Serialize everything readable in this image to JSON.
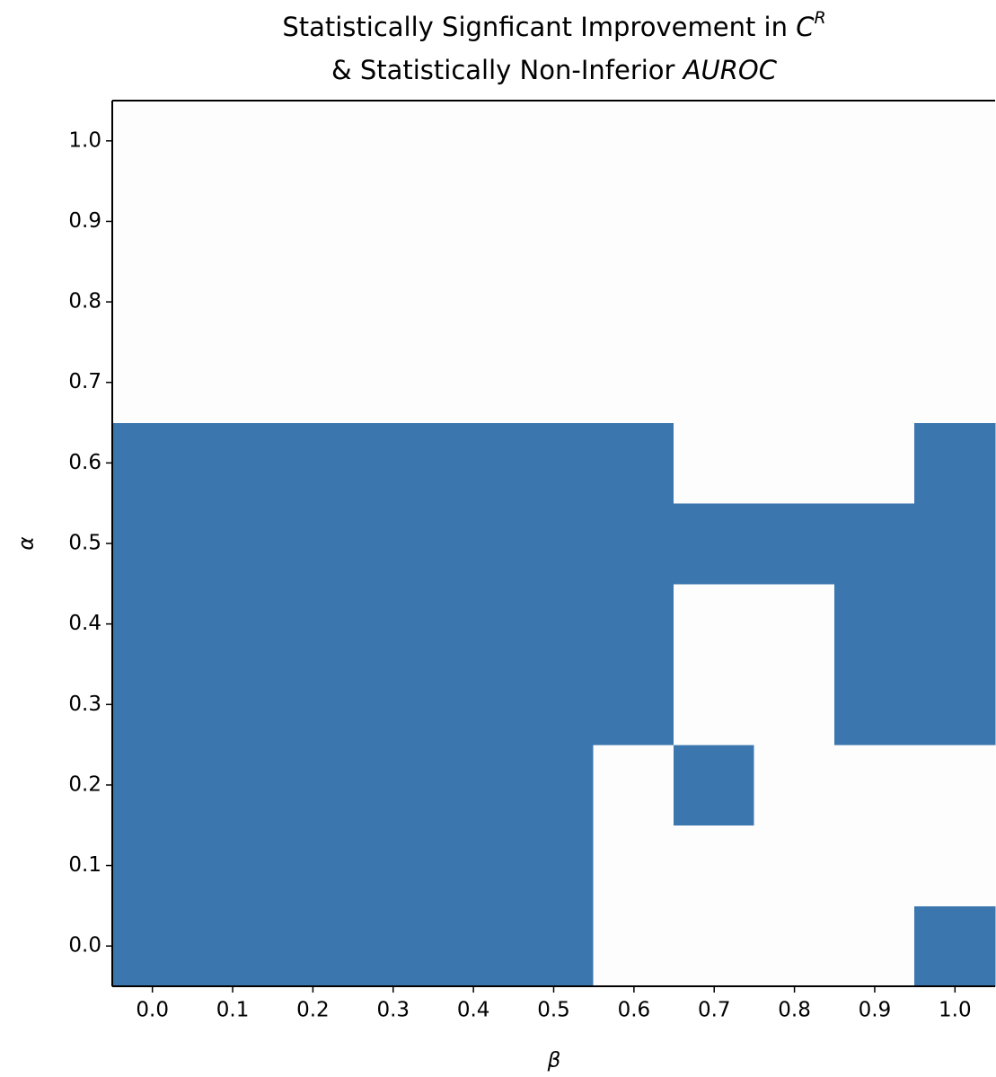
{
  "chart_data": {
    "type": "heatmap",
    "title": [
      "Statistically Signficant Improvement in ",
      "C",
      "R",
      "& Statistically Non-Inferior ",
      "AUROC"
    ],
    "x_label": "β",
    "y_label": "α",
    "x": [
      0,
      0.1,
      0.2,
      0.3,
      0.4,
      0.5,
      0.6,
      0.7,
      0.8,
      0.9,
      1
    ],
    "y": [
      0,
      0.1,
      0.2,
      0.3,
      0.4,
      0.5,
      0.6,
      0.7,
      0.8,
      0.9,
      1
    ],
    "z": [
      [
        1,
        1,
        1,
        1,
        1,
        1,
        0,
        0,
        0,
        0,
        1
      ],
      [
        1,
        1,
        1,
        1,
        1,
        1,
        0,
        0,
        0,
        0,
        0
      ],
      [
        1,
        1,
        1,
        1,
        1,
        1,
        0,
        1,
        0,
        0,
        0
      ],
      [
        1,
        1,
        1,
        1,
        1,
        1,
        1,
        0,
        0,
        1,
        1
      ],
      [
        1,
        1,
        1,
        1,
        1,
        1,
        1,
        0,
        0,
        1,
        1
      ],
      [
        1,
        1,
        1,
        1,
        1,
        1,
        1,
        1,
        1,
        1,
        1
      ],
      [
        1,
        1,
        1,
        1,
        1,
        1,
        1,
        0,
        0,
        0,
        1
      ],
      [
        0,
        0,
        0,
        0,
        0,
        0,
        0,
        0,
        0,
        0,
        0
      ],
      [
        0,
        0,
        0,
        0,
        0,
        0,
        0,
        0,
        0,
        0,
        0
      ],
      [
        0,
        0,
        0,
        0,
        0,
        0,
        0,
        0,
        0,
        0,
        0
      ],
      [
        0,
        0,
        0,
        0,
        0,
        0,
        0,
        0,
        0,
        0,
        0
      ]
    ],
    "colormap": [
      "#fdfdfd",
      "#3c76ae"
    ],
    "xlim": [
      -0.05,
      1.05
    ],
    "ylim": [
      -0.05,
      1.05
    ],
    "xticks": [
      {
        "value": 0,
        "label": "0.0"
      },
      {
        "value": 0.1,
        "label": "0.1"
      },
      {
        "value": 0.2,
        "label": "0.2"
      },
      {
        "value": 0.3,
        "label": "0.3"
      },
      {
        "value": 0.4,
        "label": "0.4"
      },
      {
        "value": 0.5,
        "label": "0.5"
      },
      {
        "value": 0.6,
        "label": "0.6"
      },
      {
        "value": 0.7,
        "label": "0.7"
      },
      {
        "value": 0.8,
        "label": "0.8"
      },
      {
        "value": 0.9,
        "label": "0.9"
      },
      {
        "value": 1,
        "label": "1.0"
      }
    ],
    "yticks": [
      {
        "value": 0,
        "label": "0.0"
      },
      {
        "value": 0.1,
        "label": "0.1"
      },
      {
        "value": 0.2,
        "label": "0.2"
      },
      {
        "value": 0.3,
        "label": "0.3"
      },
      {
        "value": 0.4,
        "label": "0.4"
      },
      {
        "value": 0.5,
        "label": "0.5"
      },
      {
        "value": 0.6,
        "label": "0.6"
      },
      {
        "value": 0.7,
        "label": "0.7"
      },
      {
        "value": 0.8,
        "label": "0.8"
      },
      {
        "value": 0.9,
        "label": "0.9"
      },
      {
        "value": 1,
        "label": "1.0"
      }
    ]
  }
}
